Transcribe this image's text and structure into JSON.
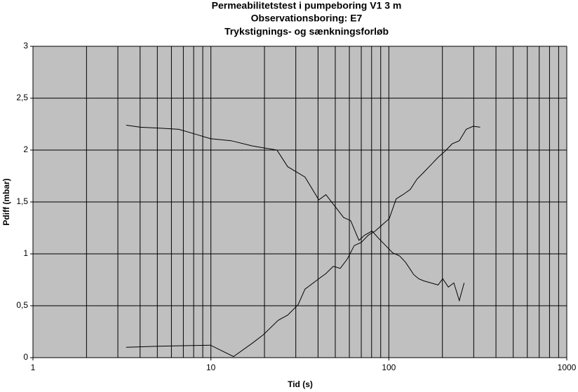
{
  "chart_data": {
    "type": "line",
    "title": [
      "Permeabilitetstest i pumpeboring V1 3 m",
      "Observationsboring: E7",
      "Trykstignings- og sænkningsforløb"
    ],
    "x_label": "Tid (s)",
    "y_label": "Pdiff (mbar)",
    "xscale": "log",
    "xlim": [
      1,
      1000
    ],
    "xticks": [
      1,
      10,
      100,
      1000
    ],
    "xminor": [
      2,
      3,
      4,
      5,
      6,
      7,
      8,
      9,
      20,
      30,
      40,
      50,
      60,
      70,
      80,
      90,
      200,
      300,
      400,
      500,
      600,
      700,
      800,
      900
    ],
    "ylim": [
      0,
      3
    ],
    "yticks": [
      0,
      {
        "value": 0.5,
        "label": "0,5"
      },
      1,
      {
        "value": 1.5,
        "label": "1,5"
      },
      2,
      {
        "value": 2.5,
        "label": "2,5"
      },
      3
    ],
    "grid": true,
    "background": "#c0c0c0",
    "series": [
      {
        "color": "#000000",
        "x": [
          3.34,
          4.01,
          5.27,
          6.6,
          8.31,
          9.94,
          13.0,
          17.1,
          23.5,
          27.0,
          33.8,
          40.4,
          44.3,
          55.7,
          61.0,
          67.9,
          73.0,
          80.5,
          87.6,
          96.0,
          105,
          115,
          124,
          132,
          138,
          147,
          157,
          172,
          189,
          201,
          216,
          232,
          249,
          265
        ],
        "values": [
          2.24,
          2.22,
          2.21,
          2.2,
          2.15,
          2.11,
          2.09,
          2.04,
          2.0,
          1.84,
          1.74,
          1.52,
          1.57,
          1.35,
          1.32,
          1.13,
          1.18,
          1.22,
          1.15,
          1.08,
          1.01,
          0.98,
          0.92,
          0.85,
          0.8,
          0.76,
          0.74,
          0.72,
          0.7,
          0.76,
          0.68,
          0.72,
          0.55,
          0.72
        ]
      },
      {
        "color": "#000000",
        "x": [
          3.34,
          5.03,
          9.94,
          13.4,
          17.1,
          19.7,
          23.9,
          27.0,
          30.9,
          33.8,
          40.4,
          44.3,
          48.7,
          53.3,
          58.4,
          63.9,
          70.0,
          76.6,
          83.9,
          91.8,
          100.5,
          110,
          120,
          132,
          144,
          158,
          173,
          189,
          207,
          227,
          249,
          272,
          298,
          326
        ],
        "values": [
          0.1,
          0.11,
          0.12,
          0.01,
          0.14,
          0.22,
          0.36,
          0.41,
          0.51,
          0.66,
          0.76,
          0.81,
          0.88,
          0.86,
          0.95,
          1.08,
          1.11,
          1.18,
          1.22,
          1.28,
          1.34,
          1.53,
          1.57,
          1.62,
          1.72,
          1.79,
          1.86,
          1.93,
          1.99,
          2.06,
          2.09,
          2.2,
          2.23,
          2.22
        ]
      }
    ]
  }
}
